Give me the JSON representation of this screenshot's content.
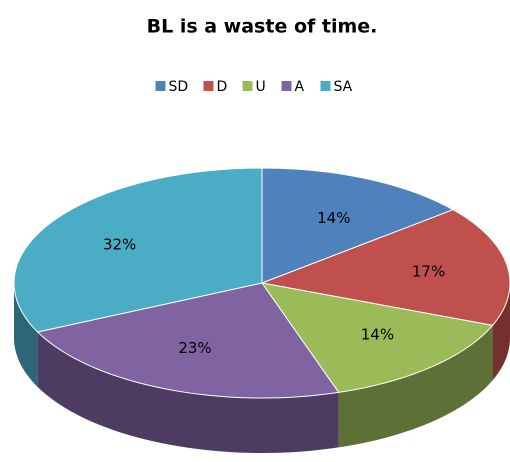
{
  "chart_data": {
    "type": "pie",
    "title": "BL  is  a waste of time.",
    "categories": [
      "SD",
      "D",
      "U",
      "A",
      "SA"
    ],
    "values": [
      14,
      17,
      14,
      23,
      32
    ],
    "value_labels": [
      "14%",
      "17%",
      "14%",
      "23%",
      "32%"
    ],
    "colors": [
      "#4f81bd",
      "#c0504d",
      "#9bbb59",
      "#8064a2",
      "#4bacc6"
    ],
    "legend": "top"
  }
}
